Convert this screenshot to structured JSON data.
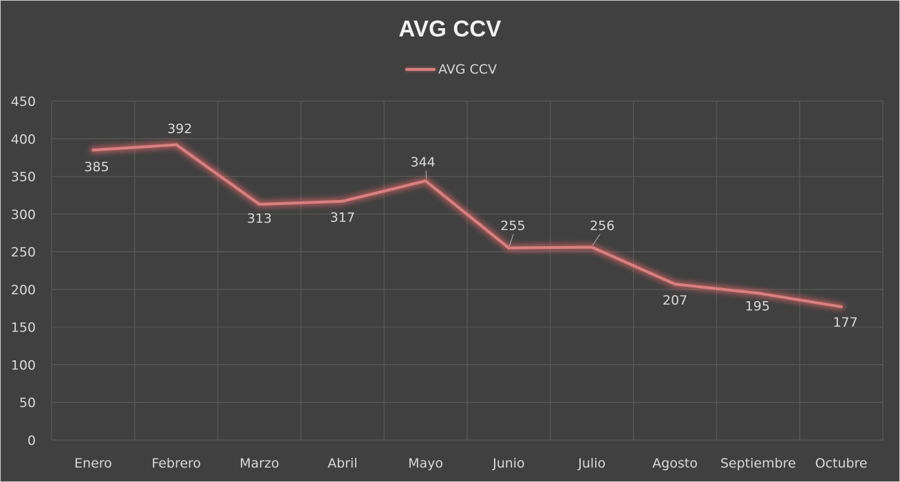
{
  "chart_data": {
    "type": "line",
    "title": "AVG CCV",
    "categories": [
      "Enero",
      "Febrero",
      "Marzo",
      "Abril",
      "Mayo",
      "Junio",
      "Julio",
      "Agosto",
      "Septiembre",
      "Octubre"
    ],
    "series": [
      {
        "name": "AVG CCV",
        "values": [
          385,
          392,
          313,
          317,
          344,
          255,
          256,
          207,
          195,
          177
        ],
        "color": "#d98080"
      }
    ],
    "ylim": [
      0,
      450
    ],
    "yticks": [
      0,
      50,
      100,
      150,
      200,
      250,
      300,
      350,
      400,
      450
    ],
    "grid": true,
    "legend": "top-center",
    "data_labels": [
      "385",
      "392",
      "313",
      "317",
      "344",
      "255",
      "256",
      "207",
      "195",
      "177"
    ],
    "colors": {
      "background": "#404040",
      "gridline": "#5a5a5a",
      "text": "#d9d9d9",
      "title": "#f2f2f2",
      "line": "#d98080"
    }
  }
}
